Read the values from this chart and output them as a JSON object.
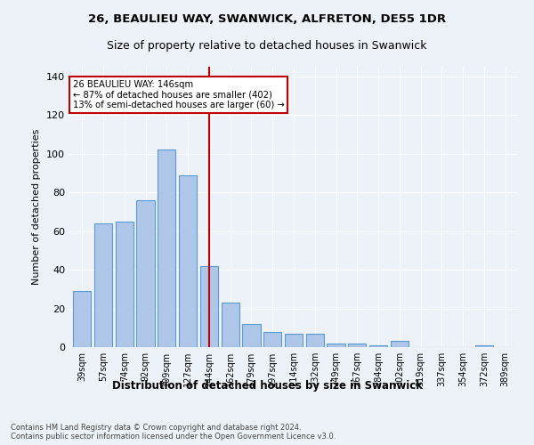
{
  "title1": "26, BEAULIEU WAY, SWANWICK, ALFRETON, DE55 1DR",
  "title2": "Size of property relative to detached houses in Swanwick",
  "xlabel": "Distribution of detached houses by size in Swanwick",
  "ylabel": "Number of detached properties",
  "categories": [
    "39sqm",
    "57sqm",
    "74sqm",
    "92sqm",
    "109sqm",
    "127sqm",
    "144sqm",
    "162sqm",
    "179sqm",
    "197sqm",
    "214sqm",
    "232sqm",
    "249sqm",
    "267sqm",
    "284sqm",
    "302sqm",
    "319sqm",
    "337sqm",
    "354sqm",
    "372sqm",
    "389sqm"
  ],
  "values": [
    29,
    64,
    65,
    76,
    102,
    89,
    42,
    23,
    12,
    8,
    7,
    7,
    2,
    2,
    1,
    3,
    0,
    0,
    0,
    1,
    0
  ],
  "bar_color": "#aec6e8",
  "bar_edge_color": "#5b9bd5",
  "highlight_index": 6,
  "highlight_color": "#c00000",
  "annotation_title": "26 BEAULIEU WAY: 146sqm",
  "annotation_line1": "← 87% of detached houses are smaller (402)",
  "annotation_line2": "13% of semi-detached houses are larger (60) →",
  "ylim": [
    0,
    145
  ],
  "yticks": [
    0,
    20,
    40,
    60,
    80,
    100,
    120,
    140
  ],
  "footer1": "Contains HM Land Registry data © Crown copyright and database right 2024.",
  "footer2": "Contains public sector information licensed under the Open Government Licence v3.0.",
  "bg_color": "#edf2f9"
}
